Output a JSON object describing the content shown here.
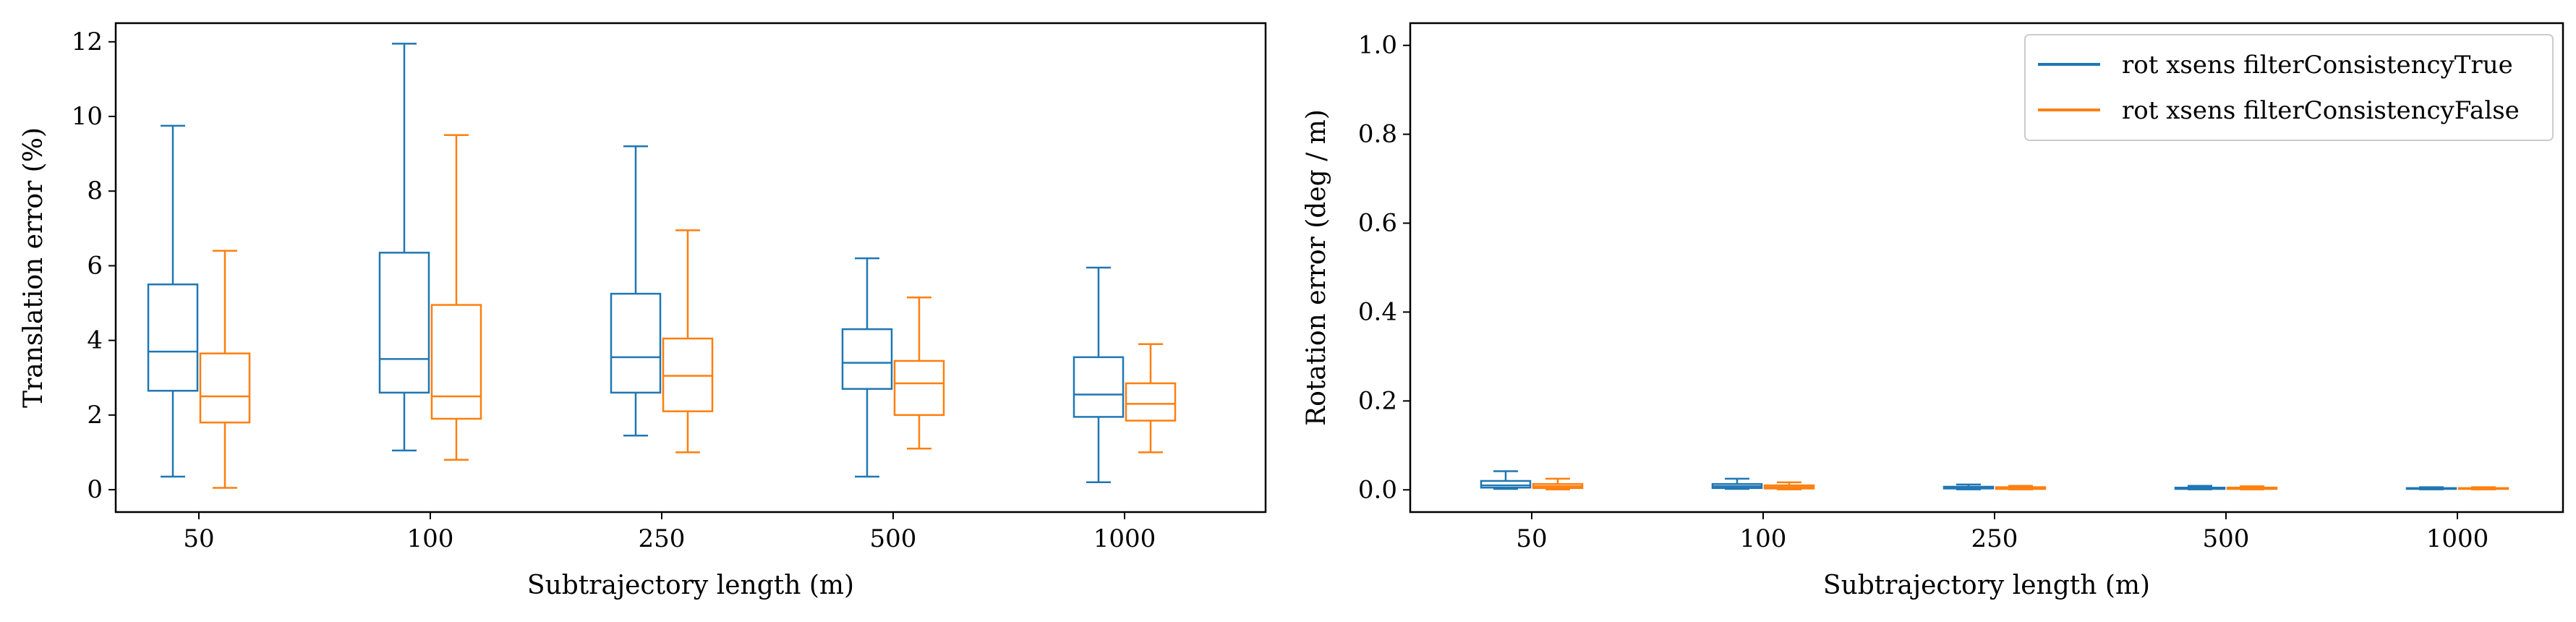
{
  "chart_data": [
    {
      "type": "box",
      "xlabel": "Subtrajectory length (m)",
      "ylabel": "Translation error (%)",
      "categories": [
        "50",
        "100",
        "250",
        "500",
        "1000"
      ],
      "ylim": [
        -0.6,
        12.5
      ],
      "yticks": [
        "0",
        "2",
        "4",
        "6",
        "8",
        "10",
        "12"
      ],
      "grid": false,
      "series": [
        {
          "color": "#1f77b4",
          "boxes": [
            {
              "whislo": 0.35,
              "q1": 2.65,
              "med": 3.7,
              "q3": 5.5,
              "whishi": 9.75
            },
            {
              "whislo": 1.05,
              "q1": 2.6,
              "med": 3.5,
              "q3": 6.35,
              "whishi": 11.95
            },
            {
              "whislo": 1.45,
              "q1": 2.6,
              "med": 3.55,
              "q3": 5.25,
              "whishi": 9.2
            },
            {
              "whislo": 0.35,
              "q1": 2.7,
              "med": 3.4,
              "q3": 4.3,
              "whishi": 6.2
            },
            {
              "whislo": 0.2,
              "q1": 1.95,
              "med": 2.55,
              "q3": 3.55,
              "whishi": 5.95
            }
          ]
        },
        {
          "color": "#ff7f0e",
          "boxes": [
            {
              "whislo": 0.05,
              "q1": 1.8,
              "med": 2.5,
              "q3": 3.65,
              "whishi": 6.4
            },
            {
              "whislo": 0.8,
              "q1": 1.9,
              "med": 2.5,
              "q3": 4.95,
              "whishi": 9.5
            },
            {
              "whislo": 1.0,
              "q1": 2.1,
              "med": 3.05,
              "q3": 4.05,
              "whishi": 6.95
            },
            {
              "whislo": 1.1,
              "q1": 2.0,
              "med": 2.85,
              "q3": 3.45,
              "whishi": 5.15
            },
            {
              "whislo": 1.0,
              "q1": 1.85,
              "med": 2.3,
              "q3": 2.85,
              "whishi": 3.9
            }
          ]
        }
      ]
    },
    {
      "type": "box",
      "xlabel": "Subtrajectory length (m)",
      "ylabel": "Rotation error (deg / m)",
      "categories": [
        "50",
        "100",
        "250",
        "500",
        "1000"
      ],
      "ylim": [
        -0.05,
        1.05
      ],
      "yticks": [
        "0.0",
        "0.2",
        "0.4",
        "0.6",
        "0.8",
        "1.0"
      ],
      "grid": false,
      "legend_position": "top-right",
      "series": [
        {
          "name": "rot xsens filterConsistencyTrue",
          "color": "#1f77b4",
          "boxes": [
            {
              "whislo": 0.002,
              "q1": 0.005,
              "med": 0.01,
              "q3": 0.02,
              "whishi": 0.042
            },
            {
              "whislo": 0.002,
              "q1": 0.004,
              "med": 0.008,
              "q3": 0.013,
              "whishi": 0.025
            },
            {
              "whislo": 0.001,
              "q1": 0.003,
              "med": 0.005,
              "q3": 0.007,
              "whishi": 0.012
            },
            {
              "whislo": 0.001,
              "q1": 0.002,
              "med": 0.004,
              "q3": 0.005,
              "whishi": 0.009
            },
            {
              "whislo": 0.001,
              "q1": 0.002,
              "med": 0.003,
              "q3": 0.004,
              "whishi": 0.006
            }
          ]
        },
        {
          "name": "rot xsens filterConsistencyFalse",
          "color": "#ff7f0e",
          "boxes": [
            {
              "whislo": 0.001,
              "q1": 0.004,
              "med": 0.008,
              "q3": 0.013,
              "whishi": 0.025
            },
            {
              "whislo": 0.001,
              "q1": 0.003,
              "med": 0.006,
              "q3": 0.01,
              "whishi": 0.017
            },
            {
              "whislo": 0.001,
              "q1": 0.002,
              "med": 0.004,
              "q3": 0.006,
              "whishi": 0.009
            },
            {
              "whislo": 0.001,
              "q1": 0.002,
              "med": 0.003,
              "q3": 0.005,
              "whishi": 0.008
            },
            {
              "whislo": 0.001,
              "q1": 0.002,
              "med": 0.003,
              "q3": 0.004,
              "whishi": 0.006
            }
          ]
        }
      ]
    }
  ]
}
